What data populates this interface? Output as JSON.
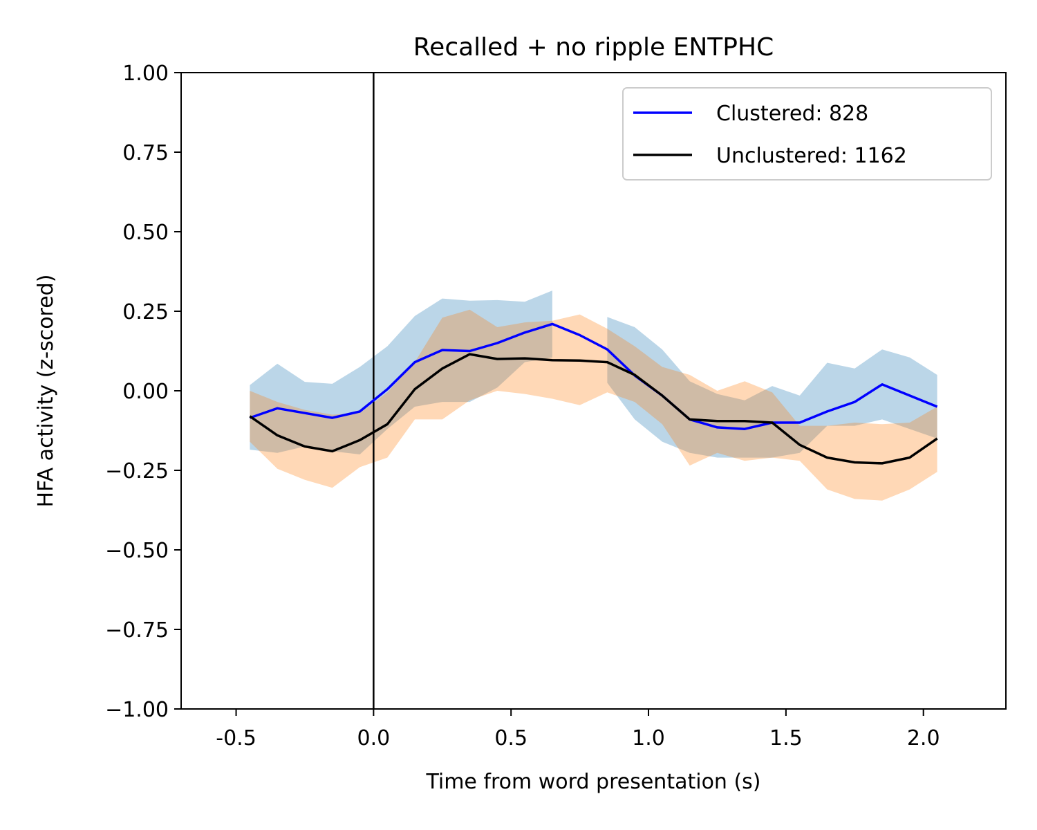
{
  "chart_data": {
    "type": "line",
    "title": "Recalled + no ripple ENTPHC",
    "xlabel": "Time from word presentation (s)",
    "ylabel": "HFA activity (z-scored)",
    "xlim": [
      -0.7,
      2.3
    ],
    "ylim": [
      -1.0,
      1.0
    ],
    "xticks": [
      -0.5,
      0.0,
      0.5,
      1.0,
      1.5,
      2.0
    ],
    "xtick_labels": [
      "-0.5",
      "0.0",
      "0.5",
      "1.0",
      "1.5",
      "2.0"
    ],
    "yticks": [
      1.0,
      0.75,
      0.5,
      0.25,
      0.0,
      -0.25,
      -0.5,
      -0.75,
      -1.0
    ],
    "ytick_labels": [
      "1.00",
      "0.75",
      "0.50",
      "0.25",
      "0.00",
      "−0.25",
      "−0.50",
      "−0.75",
      "−1.00"
    ],
    "grid": false,
    "legend_position": "top-right",
    "vertical_line_x": 0.0,
    "x": [
      -0.45,
      -0.35,
      -0.25,
      -0.15,
      -0.05,
      0.05,
      0.15,
      0.25,
      0.35,
      0.45,
      0.55,
      0.65,
      0.75,
      0.85,
      0.95,
      1.05,
      1.15,
      1.25,
      1.35,
      1.45,
      1.55,
      1.65,
      1.75,
      1.85,
      1.95,
      2.05
    ],
    "series": [
      {
        "name": "Clustered: 828",
        "color": "#0000ff",
        "band_color": "#1f77b4",
        "values": [
          -0.085,
          -0.055,
          -0.07,
          -0.085,
          -0.065,
          0.005,
          0.09,
          0.128,
          0.125,
          0.15,
          0.183,
          0.21,
          0.175,
          0.13,
          0.048,
          -0.015,
          -0.09,
          -0.115,
          -0.12,
          -0.1,
          -0.1,
          -0.065,
          -0.035,
          0.02,
          -0.015,
          -0.05
        ],
        "upper": [
          0.018,
          0.085,
          0.028,
          0.022,
          0.075,
          0.14,
          0.235,
          0.29,
          0.283,
          0.285,
          0.28,
          0.315,
          null,
          0.232,
          0.2,
          0.13,
          0.03,
          -0.01,
          -0.03,
          0.015,
          -0.015,
          0.088,
          0.07,
          0.13,
          0.105,
          0.05
        ],
        "lower": [
          -0.185,
          -0.195,
          -0.175,
          -0.19,
          -0.2,
          -0.12,
          -0.05,
          -0.035,
          -0.035,
          0.01,
          0.09,
          0.105,
          null,
          0.025,
          -0.09,
          -0.16,
          -0.195,
          -0.21,
          -0.21,
          -0.21,
          -0.195,
          -0.11,
          -0.11,
          -0.09,
          -0.12,
          -0.15
        ]
      },
      {
        "name": "Unclustered: 1162",
        "color": "#000000",
        "band_color": "#ff7f0e",
        "values": [
          -0.08,
          -0.14,
          -0.175,
          -0.19,
          -0.155,
          -0.105,
          0.005,
          0.07,
          0.115,
          0.1,
          0.102,
          0.096,
          0.095,
          0.09,
          0.05,
          -0.015,
          -0.09,
          -0.095,
          -0.095,
          -0.1,
          -0.17,
          -0.21,
          -0.225,
          -0.228,
          -0.21,
          -0.15
        ],
        "upper": [
          0.0,
          -0.035,
          -0.06,
          -0.075,
          -0.07,
          -0.005,
          0.09,
          0.23,
          0.255,
          0.2,
          0.215,
          0.22,
          0.24,
          0.195,
          0.14,
          0.075,
          0.05,
          0.0,
          0.03,
          -0.005,
          -0.11,
          -0.11,
          -0.1,
          -0.105,
          -0.1,
          -0.05
        ],
        "lower": [
          -0.16,
          -0.245,
          -0.28,
          -0.305,
          -0.24,
          -0.21,
          -0.09,
          -0.09,
          -0.03,
          0.0,
          -0.01,
          -0.025,
          -0.045,
          -0.005,
          -0.035,
          -0.105,
          -0.235,
          -0.195,
          -0.22,
          -0.21,
          -0.22,
          -0.31,
          -0.34,
          -0.345,
          -0.31,
          -0.255
        ]
      }
    ]
  }
}
